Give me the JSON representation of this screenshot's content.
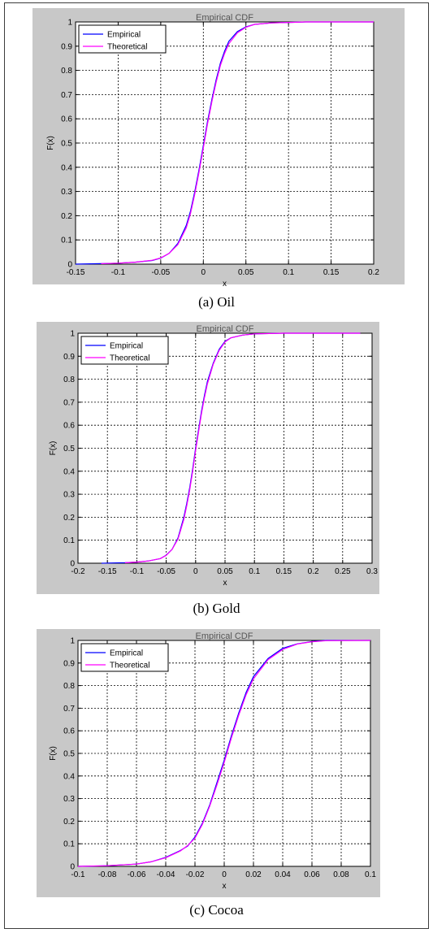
{
  "chart_data": [
    {
      "type": "line",
      "title": "Empirical CDF",
      "xlabel": "x",
      "ylabel": "F(x)",
      "caption": "(a) Oil",
      "xlim": [
        -0.15,
        0.2
      ],
      "ylim": [
        0,
        1
      ],
      "xticks": [
        "-0.15",
        "-0.1",
        "-0.05",
        "0",
        "0.05",
        "0.1",
        "0.15",
        "0.2"
      ],
      "yticks": [
        "0",
        "0.1",
        "0.2",
        "0.3",
        "0.4",
        "0.5",
        "0.6",
        "0.7",
        "0.8",
        "0.9",
        "1"
      ],
      "grid": true,
      "legend_position": "top-left",
      "series": [
        {
          "name": "Empirical",
          "color": "#0000ff",
          "x": [
            -0.15,
            -0.12,
            -0.1,
            -0.08,
            -0.06,
            -0.05,
            -0.04,
            -0.03,
            -0.02,
            -0.015,
            -0.01,
            -0.005,
            0,
            0.005,
            0.01,
            0.015,
            0.02,
            0.025,
            0.03,
            0.04,
            0.05,
            0.06,
            0.08,
            0.1,
            0.12,
            0.2
          ],
          "y": [
            0.0,
            0.002,
            0.004,
            0.008,
            0.015,
            0.025,
            0.045,
            0.085,
            0.16,
            0.22,
            0.3,
            0.39,
            0.49,
            0.59,
            0.68,
            0.76,
            0.83,
            0.88,
            0.92,
            0.96,
            0.98,
            0.99,
            0.996,
            0.998,
            1.0,
            1.0
          ]
        },
        {
          "name": "Theoretical",
          "color": "#ff00ff",
          "x": [
            -0.12,
            -0.1,
            -0.08,
            -0.06,
            -0.05,
            -0.04,
            -0.03,
            -0.02,
            -0.015,
            -0.01,
            -0.005,
            0,
            0.005,
            0.01,
            0.015,
            0.02,
            0.025,
            0.03,
            0.04,
            0.05,
            0.06,
            0.08,
            0.1,
            0.12,
            0.2
          ],
          "y": [
            0.002,
            0.004,
            0.008,
            0.016,
            0.026,
            0.045,
            0.08,
            0.15,
            0.21,
            0.29,
            0.38,
            0.48,
            0.58,
            0.67,
            0.75,
            0.82,
            0.87,
            0.91,
            0.955,
            0.978,
            0.99,
            0.996,
            0.998,
            1.0,
            1.0
          ]
        }
      ]
    },
    {
      "type": "line",
      "title": "Empirical CDF",
      "xlabel": "x",
      "ylabel": "F(x)",
      "caption": "(b) Gold",
      "xlim": [
        -0.2,
        0.3
      ],
      "ylim": [
        0,
        1
      ],
      "xticks": [
        "-0.2",
        "-0.15",
        "-0.1",
        "-0.05",
        "0",
        "0.05",
        "0.1",
        "0.15",
        "0.2",
        "0.25",
        "0.3"
      ],
      "yticks": [
        "0",
        "0.1",
        "0.2",
        "0.3",
        "0.4",
        "0.5",
        "0.6",
        "0.7",
        "0.8",
        "0.9",
        "1"
      ],
      "grid": true,
      "legend_position": "top-left",
      "series": [
        {
          "name": "Empirical",
          "color": "#0000ff",
          "x": [
            -0.16,
            -0.12,
            -0.1,
            -0.08,
            -0.06,
            -0.05,
            -0.04,
            -0.03,
            -0.02,
            -0.015,
            -0.01,
            -0.005,
            0,
            0.005,
            0.01,
            0.015,
            0.02,
            0.03,
            0.04,
            0.05,
            0.06,
            0.08,
            0.1,
            0.15,
            0.28
          ],
          "y": [
            0.0,
            0.002,
            0.005,
            0.01,
            0.02,
            0.035,
            0.06,
            0.11,
            0.2,
            0.26,
            0.33,
            0.41,
            0.5,
            0.58,
            0.66,
            0.73,
            0.79,
            0.87,
            0.93,
            0.965,
            0.98,
            0.992,
            0.997,
            1.0,
            1.0
          ]
        },
        {
          "name": "Theoretical",
          "color": "#ff00ff",
          "x": [
            -0.12,
            -0.1,
            -0.08,
            -0.06,
            -0.05,
            -0.04,
            -0.03,
            -0.02,
            -0.015,
            -0.01,
            -0.005,
            0,
            0.005,
            0.01,
            0.015,
            0.02,
            0.03,
            0.04,
            0.05,
            0.06,
            0.08,
            0.1,
            0.15,
            0.28
          ],
          "y": [
            0.002,
            0.005,
            0.01,
            0.02,
            0.034,
            0.06,
            0.105,
            0.19,
            0.25,
            0.32,
            0.4,
            0.49,
            0.57,
            0.65,
            0.72,
            0.78,
            0.865,
            0.925,
            0.962,
            0.98,
            0.992,
            0.997,
            1.0,
            1.0
          ]
        }
      ]
    },
    {
      "type": "line",
      "title": "Empirical CDF",
      "xlabel": "x",
      "ylabel": "F(x)",
      "caption": "(c) Cocoa",
      "xlim": [
        -0.1,
        0.1
      ],
      "ylim": [
        0,
        1
      ],
      "xticks": [
        "-0.1",
        "-0.08",
        "-0.06",
        "-0.04",
        "-0.02",
        "0",
        "0.02",
        "0.04",
        "0.06",
        "0.08",
        "0.1"
      ],
      "yticks": [
        "0",
        "0.1",
        "0.2",
        "0.3",
        "0.4",
        "0.5",
        "0.6",
        "0.7",
        "0.8",
        "0.9",
        "1"
      ],
      "grid": true,
      "legend_position": "top-left",
      "series": [
        {
          "name": "Empirical",
          "color": "#0000ff",
          "x": [
            -0.1,
            -0.08,
            -0.06,
            -0.05,
            -0.04,
            -0.03,
            -0.025,
            -0.02,
            -0.015,
            -0.01,
            -0.005,
            0,
            0.005,
            0.01,
            0.015,
            0.02,
            0.03,
            0.04,
            0.05,
            0.06,
            0.07,
            0.1
          ],
          "y": [
            0.0,
            0.003,
            0.01,
            0.02,
            0.04,
            0.07,
            0.09,
            0.13,
            0.19,
            0.27,
            0.37,
            0.47,
            0.58,
            0.68,
            0.77,
            0.84,
            0.92,
            0.965,
            0.985,
            0.995,
            1.0,
            1.0
          ]
        },
        {
          "name": "Theoretical",
          "color": "#ff00ff",
          "x": [
            -0.1,
            -0.08,
            -0.06,
            -0.05,
            -0.04,
            -0.03,
            -0.025,
            -0.02,
            -0.015,
            -0.01,
            -0.005,
            0,
            0.005,
            0.01,
            0.015,
            0.02,
            0.03,
            0.04,
            0.05,
            0.06,
            0.07,
            0.1
          ],
          "y": [
            0.0,
            0.003,
            0.01,
            0.02,
            0.038,
            0.068,
            0.092,
            0.125,
            0.185,
            0.265,
            0.36,
            0.46,
            0.57,
            0.67,
            0.76,
            0.83,
            0.915,
            0.96,
            0.984,
            0.994,
            0.999,
            1.0
          ]
        }
      ]
    }
  ]
}
